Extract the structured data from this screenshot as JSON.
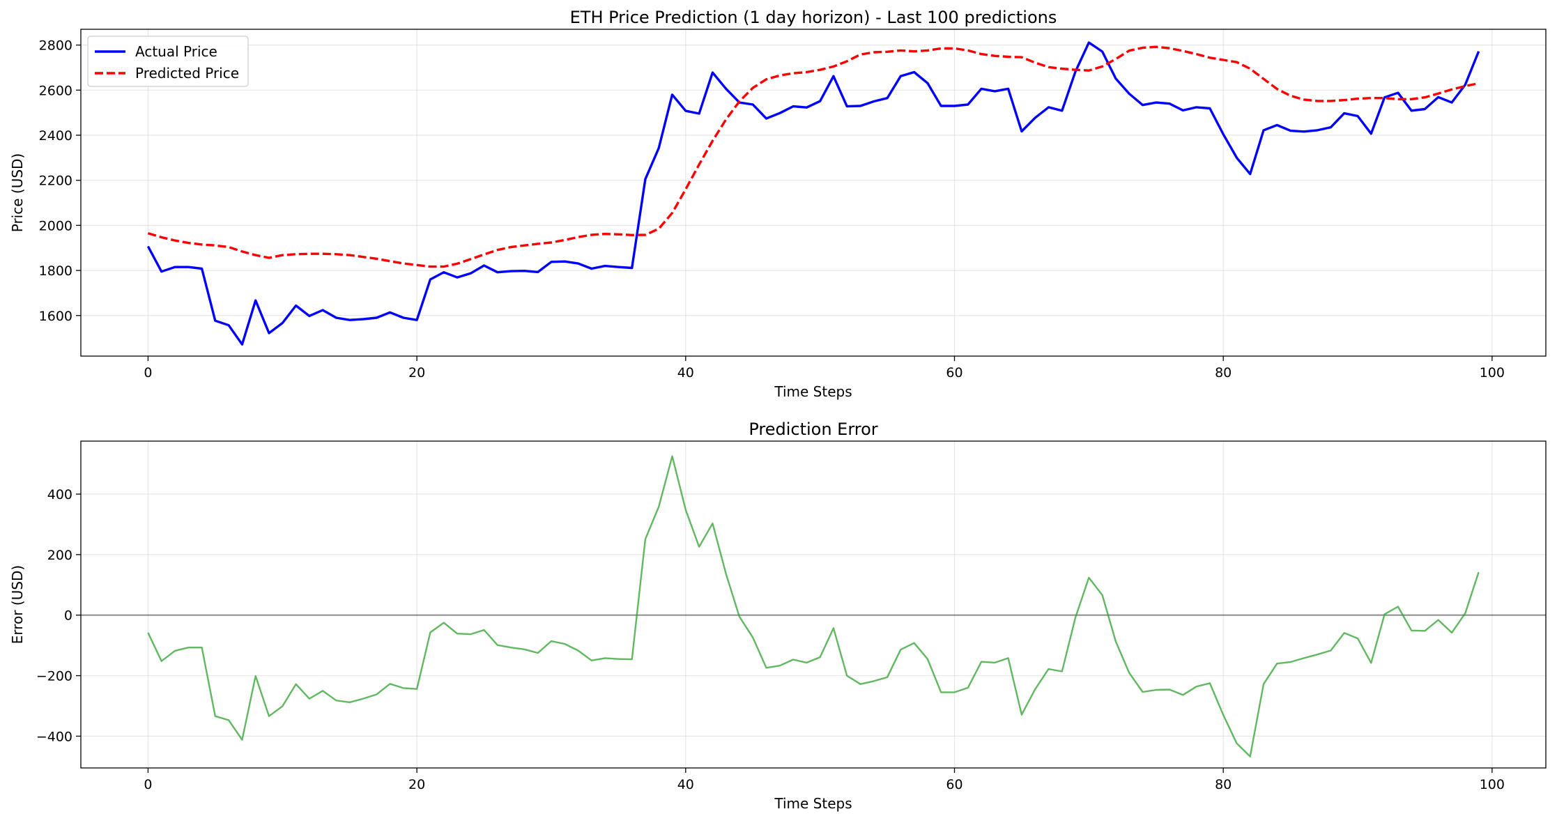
{
  "charts": [
    {
      "id": "price",
      "chart_data": {
        "type": "line",
        "title": "ETH Price Prediction (1 day horizon) - Last 100 predictions",
        "xlabel": "Time Steps",
        "ylabel": "Price (USD)",
        "xlim": [
          -5,
          104
        ],
        "ylim": [
          1420,
          2870
        ],
        "xticks": [
          0,
          20,
          40,
          60,
          80,
          100
        ],
        "yticks": [
          1600,
          1800,
          2000,
          2200,
          2400,
          2600,
          2800
        ],
        "grid": true,
        "legend": "top-left",
        "series": [
          {
            "name": "Actual Price",
            "color": "#0000ff",
            "style": "solid",
            "values": [
              1907,
              1795,
              1815,
              1815,
              1808,
              1577,
              1557,
              1472,
              1667,
              1522,
              1567,
              1644,
              1598,
              1624,
              1590,
              1580,
              1584,
              1590,
              1614,
              1590,
              1580,
              1760,
              1792,
              1769,
              1787,
              1822,
              1792,
              1797,
              1798,
              1793,
              1838,
              1840,
              1831,
              1808,
              1820,
              1815,
              1811,
              2205,
              2343,
              2580,
              2508,
              2496,
              2678,
              2606,
              2545,
              2536,
              2474,
              2498,
              2528,
              2523,
              2551,
              2662,
              2528,
              2530,
              2550,
              2565,
              2662,
              2680,
              2631,
              2530,
              2530,
              2536,
              2606,
              2595,
              2606,
              2417,
              2477,
              2524,
              2509,
              2682,
              2811,
              2771,
              2651,
              2584,
              2534,
              2545,
              2540,
              2510,
              2524,
              2519,
              2404,
              2300,
              2228,
              2422,
              2445,
              2420,
              2416,
              2422,
              2435,
              2497,
              2485,
              2407,
              2568,
              2588,
              2509,
              2516,
              2569,
              2545,
              2624,
              2772
            ]
          },
          {
            "name": "Predicted Price",
            "color": "#ff0000",
            "style": "dashed",
            "values": [
              1965,
              1947,
              1933,
              1922,
              1915,
              1911,
              1904,
              1884,
              1868,
              1856,
              1868,
              1872,
              1874,
              1874,
              1872,
              1868,
              1860,
              1852,
              1841,
              1831,
              1824,
              1817,
              1817,
              1830,
              1850,
              1871,
              1891,
              1904,
              1911,
              1918,
              1924,
              1935,
              1948,
              1958,
              1962,
              1960,
              1957,
              1958,
              1985,
              2055,
              2160,
              2270,
              2375,
              2470,
              2550,
              2610,
              2648,
              2665,
              2675,
              2680,
              2690,
              2705,
              2728,
              2758,
              2768,
              2770,
              2776,
              2772,
              2776,
              2785,
              2785,
              2776,
              2760,
              2752,
              2748,
              2746,
              2722,
              2702,
              2695,
              2690,
              2687,
              2705,
              2738,
              2775,
              2788,
              2792,
              2786,
              2774,
              2760,
              2744,
              2734,
              2724,
              2695,
              2650,
              2605,
              2575,
              2558,
              2552,
              2552,
              2556,
              2562,
              2565,
              2565,
              2560,
              2560,
              2568,
              2585,
              2603,
              2618,
              2630
            ]
          }
        ]
      }
    },
    {
      "id": "error",
      "chart_data": {
        "type": "line",
        "title": "Prediction Error",
        "xlabel": "Time Steps",
        "ylabel": "Error (USD)",
        "xlim": [
          -5,
          104
        ],
        "ylim": [
          -505,
          575
        ],
        "xticks": [
          0,
          20,
          40,
          60,
          80,
          100
        ],
        "yticks": [
          -400,
          -200,
          0,
          200,
          400
        ],
        "grid": true,
        "zero_line": true,
        "series": [
          {
            "name": "",
            "color": "#2ca02c",
            "style": "solid",
            "values": [
              -58,
              -152,
              -118,
              -107,
              -107,
              -334,
              -347,
              -412,
              -201,
              -334,
              -301,
              -228,
              -276,
              -250,
              -282,
              -288,
              -276,
              -262,
              -227,
              -241,
              -244,
              -57,
              -25,
              -61,
              -63,
              -49,
              -99,
              -107,
              -113,
              -125,
              -86,
              -95,
              -117,
              -150,
              -142,
              -145,
              -146,
              251,
              358,
              525,
              348,
              226,
              303,
              136,
              -5,
              -74,
              -174,
              -167,
              -147,
              -157,
              -139,
              -43,
              -200,
              -228,
              -218,
              -205,
              -114,
              -92,
              -145,
              -255,
              -255,
              -240,
              -154,
              -157,
              -142,
              -329,
              -245,
              -178,
              -186,
              -8,
              124,
              66,
              -87,
              -191,
              -254,
              -247,
              -246,
              -264,
              -236,
              -225,
              -330,
              -424,
              -467,
              -228,
              -160,
              -155,
              -142,
              -130,
              -117,
              -59,
              -77,
              -158,
              3,
              28,
              -51,
              -52,
              -16,
              -58,
              6,
              142
            ]
          }
        ]
      }
    }
  ]
}
